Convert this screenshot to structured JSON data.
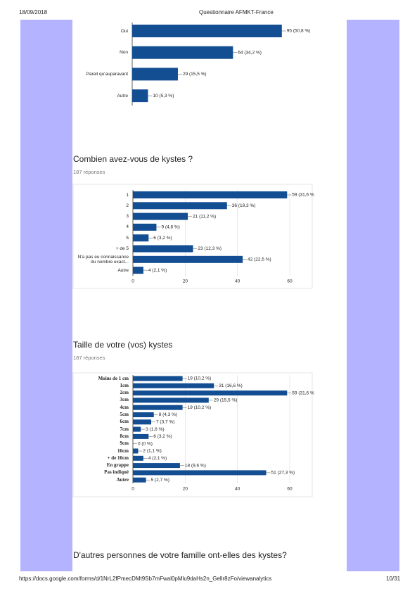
{
  "header": {
    "date": "18/09/2018",
    "title": "Questionnaire AFMKT-France"
  },
  "footer": {
    "url": "https://docs.google.com/forms/d/1NrL2fPmecDMt9Sb7mFwal0pMlu9daHs2n_Gellr8zFo/viewanalytics",
    "page": "10/31"
  },
  "questions": [
    {
      "title": "Combien avez-vous de kystes ?",
      "responses": "187 réponses"
    },
    {
      "title": "Taille de votre (vos) kystes",
      "responses": "187 réponses"
    },
    {
      "title": "D'autres personnes de votre famille ont-elles des kystes?"
    }
  ],
  "chart_data": [
    {
      "type": "bar",
      "orientation": "horizontal",
      "color": "#124e91",
      "categories": [
        "Oui",
        "Non",
        "Pareil qu'auparavant",
        "Autre"
      ],
      "values": [
        95,
        64,
        29,
        10
      ],
      "value_labels": [
        "95 (50,8 %)",
        "64 (34,2 %)",
        "29 (15,5 %)",
        "10 (5,3 %)"
      ],
      "xlim": [
        0,
        100
      ]
    },
    {
      "type": "bar",
      "orientation": "horizontal",
      "color": "#124e91",
      "categories": [
        "1",
        "2",
        "3",
        "4",
        "5",
        "+ de 5",
        "N'a pas eu connaissance du nombre exact...",
        "Autre"
      ],
      "values": [
        59,
        36,
        21,
        9,
        6,
        23,
        42,
        4
      ],
      "value_labels": [
        "59 (31,6 %)",
        "36 (19,3 %)",
        "21 (11,2 %)",
        "9 (4,8 %)",
        "6 (3,2 %)",
        "23 (12,3 %)",
        "42 (22,5 %)",
        "4 (2,1 %)"
      ],
      "xlim": [
        0,
        60
      ],
      "xticks": [
        0,
        20,
        40,
        60
      ],
      "grid": true
    },
    {
      "type": "bar",
      "orientation": "horizontal",
      "color": "#124e91",
      "categories": [
        "Moins de 1 cm",
        "1cm",
        "2cm",
        "3cm",
        "4cm",
        "5cm",
        "6cm",
        "7cm",
        "8cm",
        "9cm",
        "10cm",
        "+ de 10cm",
        "En grappe",
        "Pas indiqué",
        "Autre"
      ],
      "values": [
        19,
        31,
        59,
        29,
        19,
        8,
        7,
        3,
        6,
        0,
        2,
        4,
        18,
        51,
        5
      ],
      "value_labels": [
        "19 (10,2 %)",
        "31 (16,6 %)",
        "59 (31,6 %)",
        "29 (15,5 %)",
        "19 (10,2 %)",
        "8 (4,3 %)",
        "7 (3,7 %)",
        "3 (1,6 %)",
        "6 (3,2 %)",
        "0 (0 %)",
        "2 (1,1 %)",
        "4 (2,1 %)",
        "18 (9,6 %)",
        "51 (27,3 %)",
        "5 (2,7 %)"
      ],
      "xlim": [
        0,
        60
      ],
      "xticks": [
        0,
        20,
        40,
        60
      ],
      "grid": true
    }
  ]
}
